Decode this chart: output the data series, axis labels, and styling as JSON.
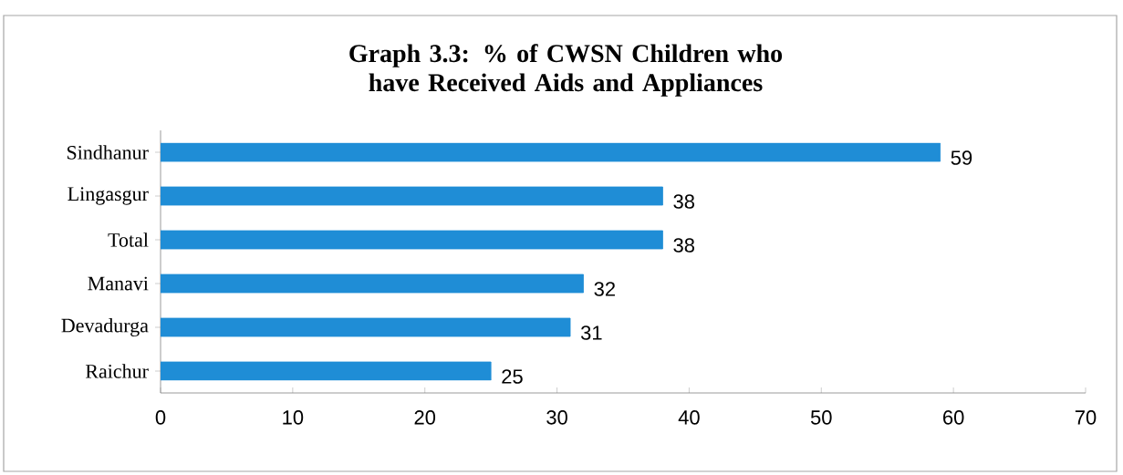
{
  "chart_data": {
    "type": "bar",
    "orientation": "horizontal",
    "title": "Graph 3.3: % of CWSN Children who have Received Aids and Appliances",
    "categories": [
      "Sindhanur",
      "Lingasgur",
      "Total",
      "Manavi",
      "Devadurga",
      "Raichur"
    ],
    "values": [
      59,
      38,
      38,
      32,
      31,
      25
    ],
    "color": "#1f8dd6",
    "xlim": [
      0,
      70
    ],
    "xticks": [
      0,
      10,
      20,
      30,
      40,
      50,
      60,
      70
    ],
    "data_labels": true,
    "grid": false
  }
}
